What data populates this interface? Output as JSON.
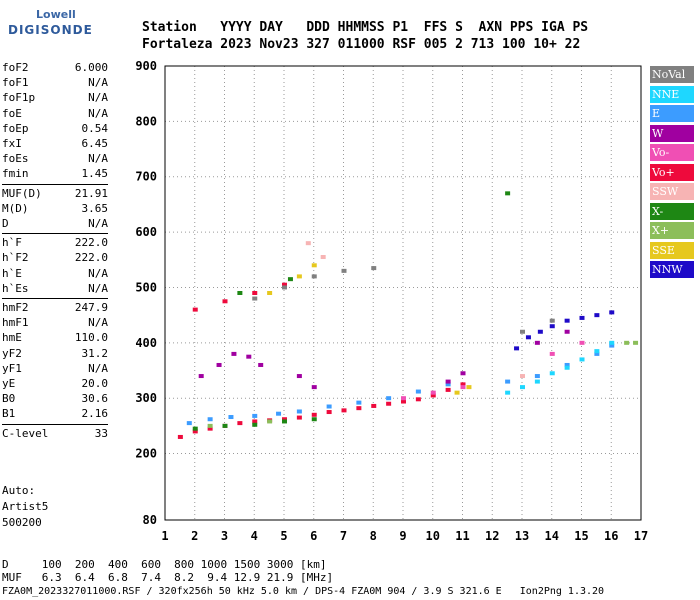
{
  "logo": {
    "line1": "Lowell",
    "line2": "DIGISONDE"
  },
  "header": {
    "row1": "Station   YYYY DAY   DDD HHMMSS P1  FFS S  AXN PPS IGA PS",
    "row2": "Fortaleza 2023 Nov23 327 011000 RSF 005 2 713 100 10+ 22"
  },
  "params": [
    {
      "name": "foF2",
      "value": "6.000"
    },
    {
      "name": "foF1",
      "value": "N/A"
    },
    {
      "name": "foF1p",
      "value": "N/A"
    },
    {
      "name": "foE",
      "value": "N/A"
    },
    {
      "name": "foEp",
      "value": "0.54"
    },
    {
      "name": "fxI",
      "value": "6.45"
    },
    {
      "name": "foEs",
      "value": "N/A"
    },
    {
      "name": "fmin",
      "value": "1.45"
    },
    {
      "name": "MUF(D)",
      "value": "21.91"
    },
    {
      "name": "M(D)",
      "value": "3.65"
    },
    {
      "name": "D",
      "value": "N/A"
    },
    {
      "name": "h`F",
      "value": "222.0"
    },
    {
      "name": "h`F2",
      "value": "222.0"
    },
    {
      "name": "h`E",
      "value": "N/A"
    },
    {
      "name": "h`Es",
      "value": "N/A"
    },
    {
      "name": "hmF2",
      "value": "247.9"
    },
    {
      "name": "hmF1",
      "value": "N/A"
    },
    {
      "name": "hmE",
      "value": "110.0"
    },
    {
      "name": "yF2",
      "value": "31.2"
    },
    {
      "name": "yF1",
      "value": "N/A"
    },
    {
      "name": "yE",
      "value": "20.0"
    },
    {
      "name": "B0",
      "value": "30.6"
    },
    {
      "name": "B1",
      "value": "2.16"
    },
    {
      "name": "C-level",
      "value": "33"
    }
  ],
  "auto": {
    "line1": "Auto:",
    "line2": "Artist5",
    "line3": "500200"
  },
  "footer": {
    "d_row": "D     100  200  400  600  800 1000 1500 3000 [km]",
    "muf_row": "MUF   6.3  6.4  6.8  7.4  8.2  9.4 12.9 21.9 [MHz]",
    "file_row": "FZA0M_2023327011000.RSF / 320fx256h 50 kHz 5.0 km / DPS-4 FZA0M 904 / 3.9 S 321.6 E   Ion2Png 1.3.20"
  },
  "legend": [
    {
      "label": "NoVal",
      "color": "#808080"
    },
    {
      "label": "NNE",
      "color": "#1ed7ff"
    },
    {
      "label": "E",
      "color": "#3c9cff"
    },
    {
      "label": "W",
      "color": "#a000a0"
    },
    {
      "label": "Vo-",
      "color": "#f04fb4"
    },
    {
      "label": "Vo+",
      "color": "#ee0a3c"
    },
    {
      "label": "SSW",
      "color": "#f7b4b4"
    },
    {
      "label": "X-",
      "color": "#1e8714"
    },
    {
      "label": "X+",
      "color": "#8cbe5a"
    },
    {
      "label": "SSE",
      "color": "#e6c81e"
    },
    {
      "label": "NNW",
      "color": "#1e0ac8"
    }
  ],
  "chart_data": {
    "type": "scatter",
    "title": "",
    "xlabel": "",
    "ylabel": "",
    "xlim": [
      1,
      17
    ],
    "ylim": [
      80,
      900
    ],
    "x_ticks": [
      1,
      2,
      3,
      4,
      5,
      6,
      7,
      8,
      9,
      10,
      11,
      12,
      13,
      14,
      15,
      16,
      17
    ],
    "y_ticks": [
      80,
      200,
      300,
      400,
      500,
      600,
      700,
      800,
      900
    ],
    "grid": "dotted",
    "legend_placement": "right",
    "series": [
      {
        "name": "Vo+",
        "color": "#ee0a3c",
        "points": [
          [
            1.5,
            230
          ],
          [
            2.0,
            240
          ],
          [
            2.5,
            245
          ],
          [
            3.0,
            250
          ],
          [
            3.5,
            255
          ],
          [
            4.0,
            258
          ],
          [
            4.5,
            260
          ],
          [
            5.0,
            262
          ],
          [
            5.5,
            265
          ],
          [
            6.0,
            270
          ],
          [
            6.5,
            275
          ],
          [
            7.0,
            278
          ],
          [
            7.5,
            282
          ],
          [
            8.0,
            286
          ],
          [
            8.5,
            290
          ],
          [
            9.0,
            294
          ],
          [
            9.5,
            298
          ],
          [
            10.0,
            305
          ],
          [
            10.5,
            315
          ],
          [
            11.0,
            325
          ],
          [
            2.0,
            460
          ],
          [
            3.0,
            475
          ],
          [
            4.0,
            490
          ],
          [
            5.0,
            505
          ]
        ]
      },
      {
        "name": "E",
        "color": "#3c9cff",
        "points": [
          [
            1.8,
            255
          ],
          [
            2.5,
            262
          ],
          [
            3.2,
            266
          ],
          [
            4.0,
            268
          ],
          [
            4.8,
            272
          ],
          [
            5.5,
            276
          ],
          [
            6.5,
            285
          ],
          [
            7.5,
            292
          ],
          [
            8.5,
            300
          ],
          [
            9.5,
            312
          ],
          [
            10.5,
            325
          ],
          [
            12.5,
            330
          ],
          [
            13.5,
            340
          ],
          [
            14.5,
            360
          ],
          [
            15.5,
            380
          ],
          [
            16.0,
            395
          ]
        ]
      },
      {
        "name": "NNE",
        "color": "#1ed7ff",
        "points": [
          [
            12.5,
            310
          ],
          [
            13.0,
            320
          ],
          [
            13.5,
            330
          ],
          [
            14.0,
            345
          ],
          [
            14.5,
            355
          ],
          [
            15.0,
            370
          ],
          [
            15.5,
            385
          ],
          [
            16.0,
            400
          ]
        ]
      },
      {
        "name": "NNW",
        "color": "#1e0ac8",
        "points": [
          [
            12.8,
            390
          ],
          [
            13.2,
            410
          ],
          [
            13.6,
            420
          ],
          [
            14.0,
            430
          ],
          [
            14.5,
            440
          ],
          [
            15.0,
            445
          ],
          [
            15.5,
            450
          ],
          [
            16.0,
            455
          ]
        ]
      },
      {
        "name": "W",
        "color": "#a000a0",
        "points": [
          [
            2.2,
            340
          ],
          [
            2.8,
            360
          ],
          [
            3.3,
            380
          ],
          [
            3.8,
            375
          ],
          [
            4.2,
            360
          ],
          [
            5.5,
            340
          ],
          [
            6.0,
            320
          ],
          [
            10.5,
            330
          ],
          [
            11.0,
            345
          ],
          [
            13.5,
            400
          ],
          [
            14.5,
            420
          ]
        ]
      },
      {
        "name": "X-",
        "color": "#1e8714",
        "points": [
          [
            2.0,
            245
          ],
          [
            3.0,
            250
          ],
          [
            4.0,
            252
          ],
          [
            5.0,
            258
          ],
          [
            6.0,
            262
          ],
          [
            12.5,
            670
          ],
          [
            3.5,
            490
          ],
          [
            5.2,
            515
          ]
        ]
      },
      {
        "name": "SSE",
        "color": "#e6c81e",
        "points": [
          [
            4.5,
            490
          ],
          [
            5.5,
            520
          ],
          [
            6.0,
            540
          ],
          [
            10.8,
            310
          ],
          [
            11.2,
            320
          ]
        ]
      },
      {
        "name": "Vo-",
        "color": "#f04fb4",
        "points": [
          [
            9.0,
            300
          ],
          [
            10.0,
            310
          ],
          [
            11.0,
            320
          ],
          [
            14.0,
            380
          ],
          [
            15.0,
            400
          ]
        ]
      },
      {
        "name": "SSW",
        "color": "#f7b4b4",
        "points": [
          [
            5.8,
            580
          ],
          [
            6.3,
            555
          ],
          [
            13.0,
            340
          ]
        ]
      },
      {
        "name": "X+",
        "color": "#8cbe5a",
        "points": [
          [
            2.5,
            250
          ],
          [
            4.5,
            258
          ],
          [
            16.5,
            400
          ],
          [
            16.8,
            400
          ]
        ]
      },
      {
        "name": "NoVal",
        "color": "#808080",
        "points": [
          [
            4.0,
            480
          ],
          [
            5.0,
            500
          ],
          [
            6.0,
            520
          ],
          [
            7.0,
            530
          ],
          [
            8.0,
            535
          ],
          [
            13.0,
            420
          ],
          [
            14.0,
            440
          ]
        ]
      }
    ]
  }
}
